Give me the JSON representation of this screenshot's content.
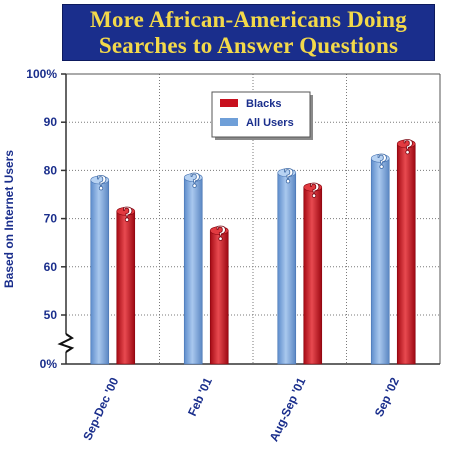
{
  "chart_data": {
    "type": "bar",
    "title_lines": [
      "More African-Americans Doing",
      "Searches to Answer Questions"
    ],
    "ylabel": "Based on Internet Users",
    "categories": [
      "Sep-Dec '00",
      "Feb '01",
      "Aug-Sep '01",
      "Sep '02"
    ],
    "series": [
      {
        "name": "All Users",
        "values": [
          78,
          78.5,
          79.5,
          82.5
        ]
      },
      {
        "name": "Blacks",
        "values": [
          71.5,
          67.5,
          76.5,
          85.5
        ]
      }
    ],
    "yticks": [
      "100%",
      "90",
      "80",
      "70",
      "60",
      "50",
      "0%"
    ],
    "ylim": [
      0,
      100
    ],
    "axis_break": true,
    "legend_position": "top-center",
    "colors": {
      "All Users": "#6f9fd8",
      "Blacks": "#c8101e",
      "title_bg": "#1a2e8c",
      "title_text": "#f3d94a",
      "grid": "#7a7a7a",
      "text": "#1a2e8c"
    }
  }
}
